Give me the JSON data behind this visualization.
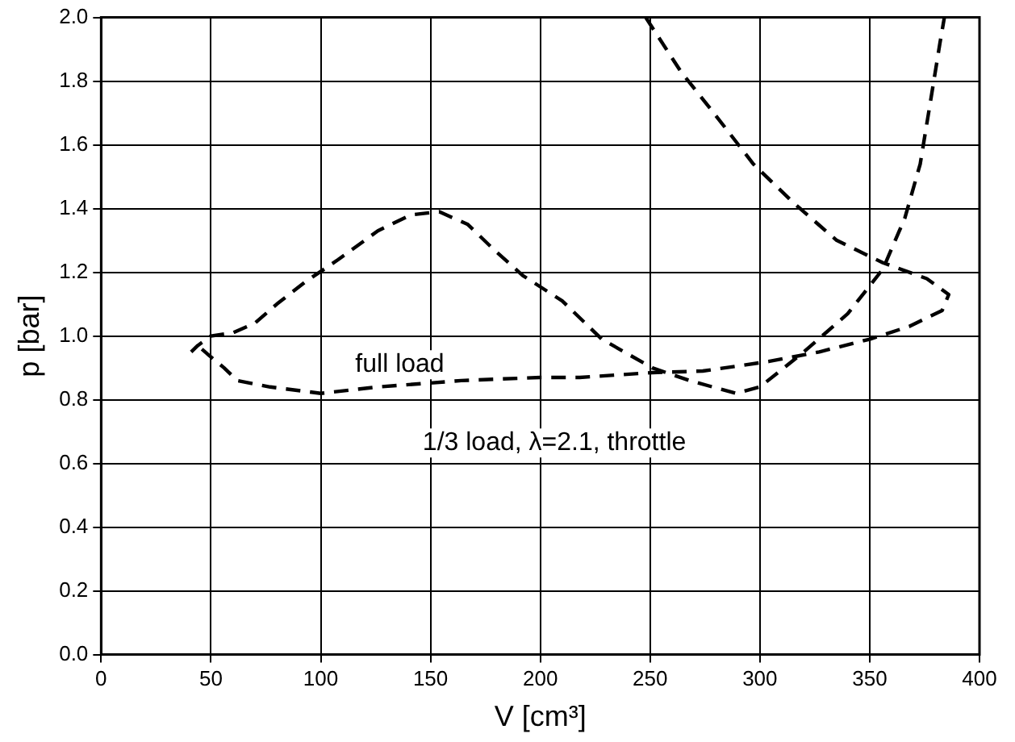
{
  "chart_data": {
    "type": "line",
    "xlabel": "V [cm³]",
    "ylabel": "p [bar]",
    "xlim": [
      0,
      400
    ],
    "xticks": [
      0,
      50,
      100,
      150,
      200,
      250,
      300,
      350,
      400
    ],
    "ylim": [
      0,
      2.0
    ],
    "yticks": [
      {
        "value": 0,
        "label": "0.0"
      },
      {
        "value": 0.2,
        "label": "0.2"
      },
      {
        "value": 0.4,
        "label": "0.4"
      },
      {
        "value": 0.6,
        "label": "0.6"
      },
      {
        "value": 0.8,
        "label": "0.8"
      },
      {
        "value": 1.0,
        "label": "1.0"
      },
      {
        "value": 1.2,
        "label": "1.2"
      },
      {
        "value": 1.4,
        "label": "1.4"
      },
      {
        "value": 1.6,
        "label": "1.6"
      },
      {
        "value": 1.8,
        "label": "1.8"
      },
      {
        "value": 2.0,
        "label": "2.0"
      }
    ],
    "grid": true,
    "legend": false,
    "marker": "none",
    "line_style": "dashed",
    "series": [
      {
        "color": "#000000",
        "x": [
          41,
          44,
          50,
          60,
          70,
          80,
          93,
          108,
          126,
          141,
          154,
          167,
          179,
          192,
          210,
          228,
          251,
          268,
          289,
          300,
          320,
          340,
          356,
          366,
          373,
          378,
          382,
          384
        ],
        "values": [
          0.95,
          0.97,
          1.0,
          1.01,
          1.04,
          1.1,
          1.17,
          1.24,
          1.33,
          1.38,
          1.39,
          1.35,
          1.27,
          1.19,
          1.11,
          0.99,
          0.9,
          0.86,
          0.82,
          0.84,
          0.95,
          1.07,
          1.21,
          1.37,
          1.54,
          1.75,
          1.92,
          2.0
        ]
      },
      {
        "color": "#000000",
        "x": [
          248,
          264,
          279,
          297,
          315,
          335,
          356,
          376,
          386,
          383,
          368,
          350,
          327,
          304,
          274,
          251,
          218,
          200,
          164,
          126,
          100,
          77,
          62,
          56,
          49,
          44
        ],
        "values": [
          2.0,
          1.83,
          1.7,
          1.54,
          1.42,
          1.3,
          1.23,
          1.18,
          1.13,
          1.08,
          1.03,
          0.99,
          0.95,
          0.92,
          0.89,
          0.885,
          0.87,
          0.87,
          0.86,
          0.84,
          0.82,
          0.84,
          0.86,
          0.9,
          0.94,
          0.97
        ]
      }
    ],
    "annotations": [
      "full load",
      "1/3 load, λ=2.1, throttle"
    ]
  }
}
